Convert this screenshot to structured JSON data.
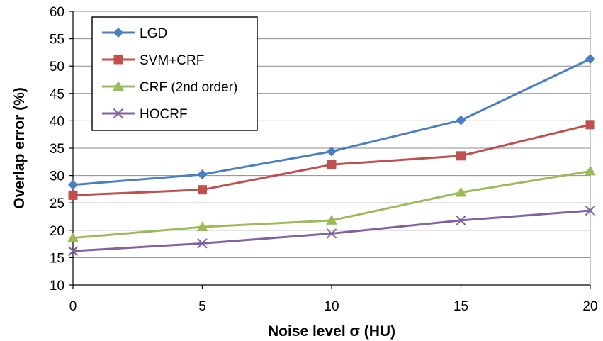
{
  "chart_data": {
    "type": "line",
    "title": "",
    "xlabel": "Noise level σ (HU)",
    "ylabel": "Overlap error (%)",
    "x": [
      0,
      5,
      10,
      15,
      20
    ],
    "xlim": [
      0,
      20
    ],
    "ylim": [
      10,
      60
    ],
    "xticks": [
      "0",
      "5",
      "10",
      "15",
      "20"
    ],
    "yticks": [
      "10",
      "15",
      "20",
      "25",
      "30",
      "35",
      "40",
      "45",
      "50",
      "55",
      "60"
    ],
    "grid": "horizontal",
    "legend_position": "top-left",
    "series": [
      {
        "name": "LGD",
        "values": [
          28.3,
          30.2,
          34.4,
          40.1,
          51.3
        ],
        "color": "#4a7fc1",
        "marker": "diamond"
      },
      {
        "name": "SVM+CRF",
        "values": [
          26.4,
          27.4,
          32.0,
          33.6,
          39.3
        ],
        "color": "#c0504d",
        "marker": "square"
      },
      {
        "name": "CRF (2nd order)",
        "values": [
          18.6,
          20.6,
          21.8,
          26.9,
          30.8
        ],
        "color": "#9bbb59",
        "marker": "triangle"
      },
      {
        "name": "HOCRF",
        "values": [
          16.2,
          17.6,
          19.4,
          21.8,
          23.6
        ],
        "color": "#8064a2",
        "marker": "x"
      }
    ]
  }
}
